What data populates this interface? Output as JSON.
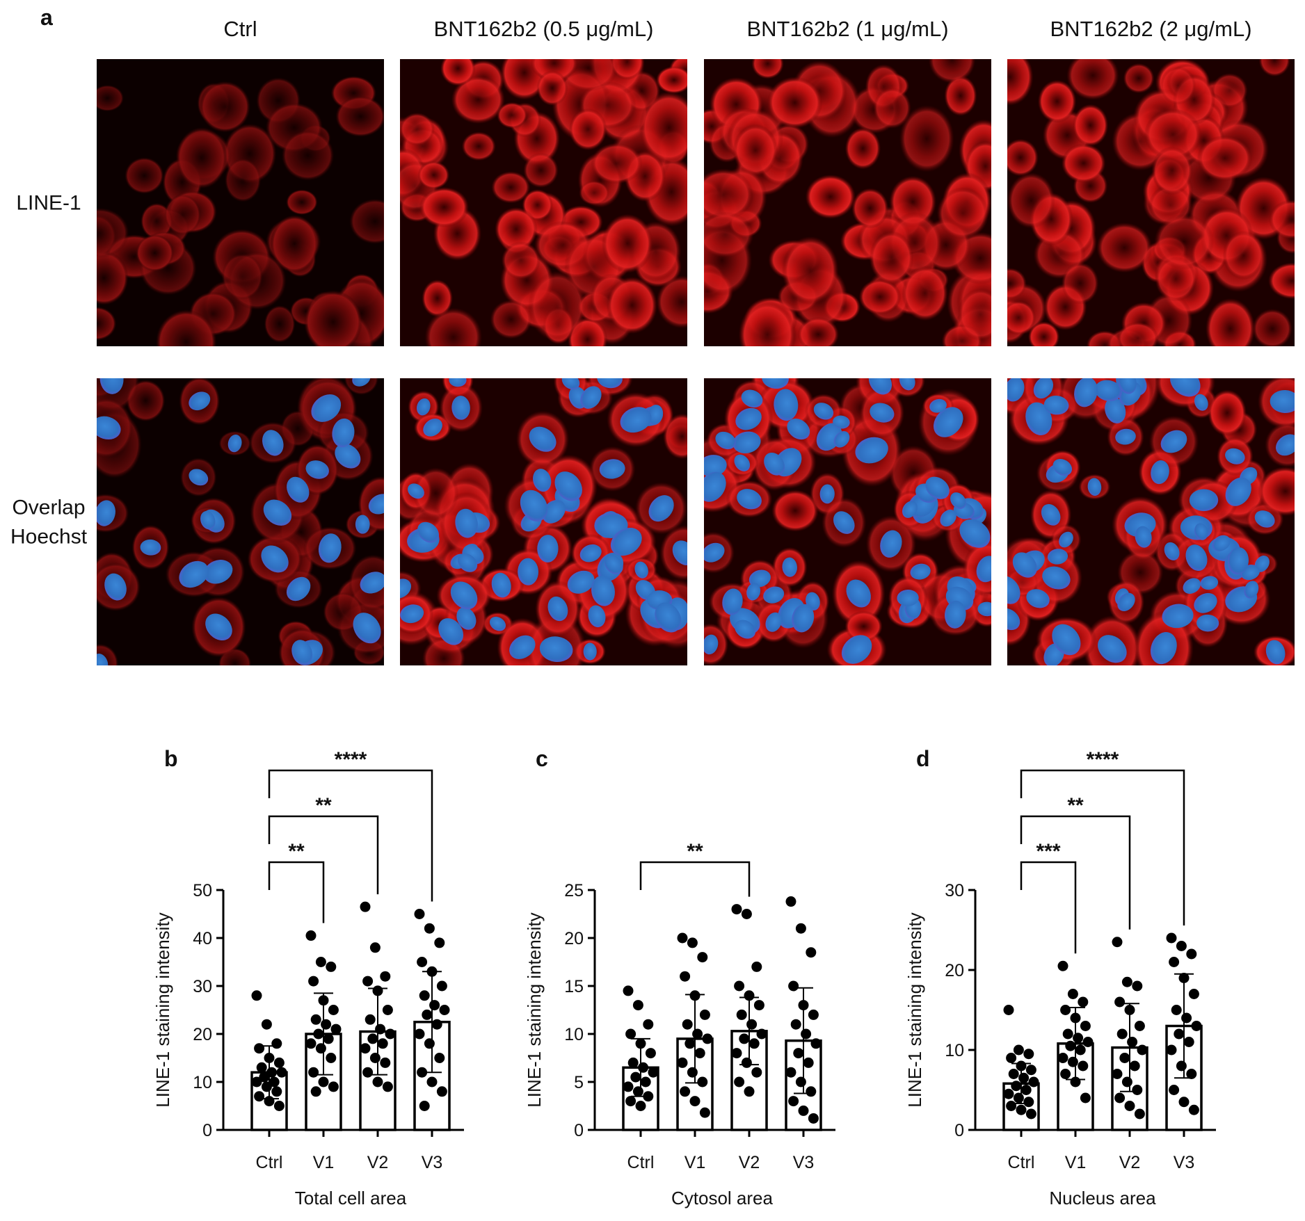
{
  "figure": {
    "panel": "a",
    "columns": [
      "Ctrl",
      "BNT162b2 (0.5 μg/mL)",
      "BNT162b2 (1 μg/mL)",
      "BNT162b2 (2 μg/mL)"
    ],
    "rows": [
      [
        "LINE-1"
      ],
      [
        "Overlap",
        "Hoechst"
      ]
    ]
  },
  "chart_data": [
    {
      "type": "bar",
      "panel": "b",
      "xlabel": "Total cell area",
      "ylabel": "LINE-1 staining intensity",
      "categories": [
        "Ctrl",
        "V1",
        "V2",
        "V3"
      ],
      "values": [
        12,
        20,
        20.5,
        22.5
      ],
      "errors": [
        5.5,
        8.5,
        9,
        10.5
      ],
      "points": [
        [
          28,
          22,
          18,
          17,
          15,
          14,
          13,
          12,
          12,
          11,
          10,
          10,
          9,
          8,
          7,
          6,
          5
        ],
        [
          40.5,
          35,
          34,
          31,
          27,
          25,
          23,
          22,
          21,
          20,
          19,
          18,
          17,
          15,
          12,
          10,
          9,
          8
        ],
        [
          46.5,
          38,
          32,
          31,
          29,
          25,
          23,
          21,
          20,
          19,
          18,
          17,
          15,
          14,
          12,
          10,
          9
        ],
        [
          45,
          42,
          39,
          35,
          33,
          30,
          28,
          26,
          25,
          24,
          22,
          20,
          18,
          15,
          12,
          10,
          8,
          5
        ]
      ],
      "ylim": [
        0,
        50
      ],
      "yticks": [
        0,
        10,
        20,
        30,
        40,
        50
      ],
      "bar_color": "#ffffff",
      "edge_color": "#000000",
      "point_color": "#000000",
      "annotations": [
        {
          "groups": [
            "Ctrl",
            "V1"
          ],
          "label": "**"
        },
        {
          "groups": [
            "Ctrl",
            "V2"
          ],
          "label": "**"
        },
        {
          "groups": [
            "Ctrl",
            "V3"
          ],
          "label": "****"
        }
      ]
    },
    {
      "type": "bar",
      "panel": "c",
      "xlabel": "Cytosol area",
      "ylabel": "LINE-1 staining intensity",
      "categories": [
        "Ctrl",
        "V1",
        "V2",
        "V3"
      ],
      "values": [
        6.5,
        9.5,
        10.3,
        9.3
      ],
      "errors": [
        3,
        4.6,
        3.5,
        5.5
      ],
      "points": [
        [
          14.5,
          13,
          11,
          10,
          9,
          8,
          7,
          6.5,
          6,
          5.5,
          5,
          4.5,
          4,
          3.5,
          3,
          2.5
        ],
        [
          20,
          19.5,
          18,
          16,
          14,
          12,
          11,
          10,
          9.5,
          9,
          8,
          7,
          6,
          5,
          4,
          3,
          1.8
        ],
        [
          23,
          22.5,
          17,
          15,
          14,
          13,
          12,
          11,
          10,
          9.5,
          9,
          8,
          7,
          6,
          5,
          4
        ],
        [
          23.8,
          21,
          18.5,
          15,
          13,
          12,
          11,
          10,
          9,
          8,
          7,
          6,
          5,
          4,
          3,
          2,
          1.2
        ]
      ],
      "ylim": [
        0,
        25
      ],
      "yticks": [
        0,
        5,
        10,
        15,
        20,
        25
      ],
      "bar_color": "#ffffff",
      "edge_color": "#000000",
      "point_color": "#000000",
      "annotations": [
        {
          "groups": [
            "Ctrl",
            "V2"
          ],
          "label": "**"
        }
      ]
    },
    {
      "type": "bar",
      "panel": "d",
      "xlabel": "Nucleus area",
      "ylabel": "LINE-1 staining intensity",
      "categories": [
        "Ctrl",
        "V1",
        "V2",
        "V3"
      ],
      "values": [
        5.8,
        10.8,
        10.3,
        13
      ],
      "errors": [
        2.5,
        4.5,
        5.5,
        6.5
      ],
      "points": [
        [
          15,
          10,
          9.5,
          9,
          8,
          7.5,
          7,
          6.5,
          6,
          5.5,
          5,
          4.5,
          4,
          3.5,
          3,
          2.5,
          2
        ],
        [
          20.5,
          17,
          16,
          15,
          14,
          13,
          12,
          11.5,
          11,
          10.5,
          10,
          9,
          8.5,
          8,
          7,
          6,
          4
        ],
        [
          23.5,
          18.5,
          18,
          16,
          15,
          13,
          12,
          11,
          10,
          9,
          8,
          7,
          6,
          5,
          4,
          3,
          2
        ],
        [
          24,
          23,
          22,
          21,
          19,
          17,
          15,
          14,
          13,
          12,
          11,
          10,
          8,
          7,
          5,
          3.5,
          2.5
        ]
      ],
      "ylim": [
        0,
        30
      ],
      "yticks": [
        0,
        10,
        20,
        30
      ],
      "bar_color": "#ffffff",
      "edge_color": "#000000",
      "point_color": "#000000",
      "annotations": [
        {
          "groups": [
            "Ctrl",
            "V1"
          ],
          "label": "***"
        },
        {
          "groups": [
            "Ctrl",
            "V2"
          ],
          "label": "**"
        },
        {
          "groups": [
            "Ctrl",
            "V3"
          ],
          "label": "****"
        }
      ]
    }
  ]
}
